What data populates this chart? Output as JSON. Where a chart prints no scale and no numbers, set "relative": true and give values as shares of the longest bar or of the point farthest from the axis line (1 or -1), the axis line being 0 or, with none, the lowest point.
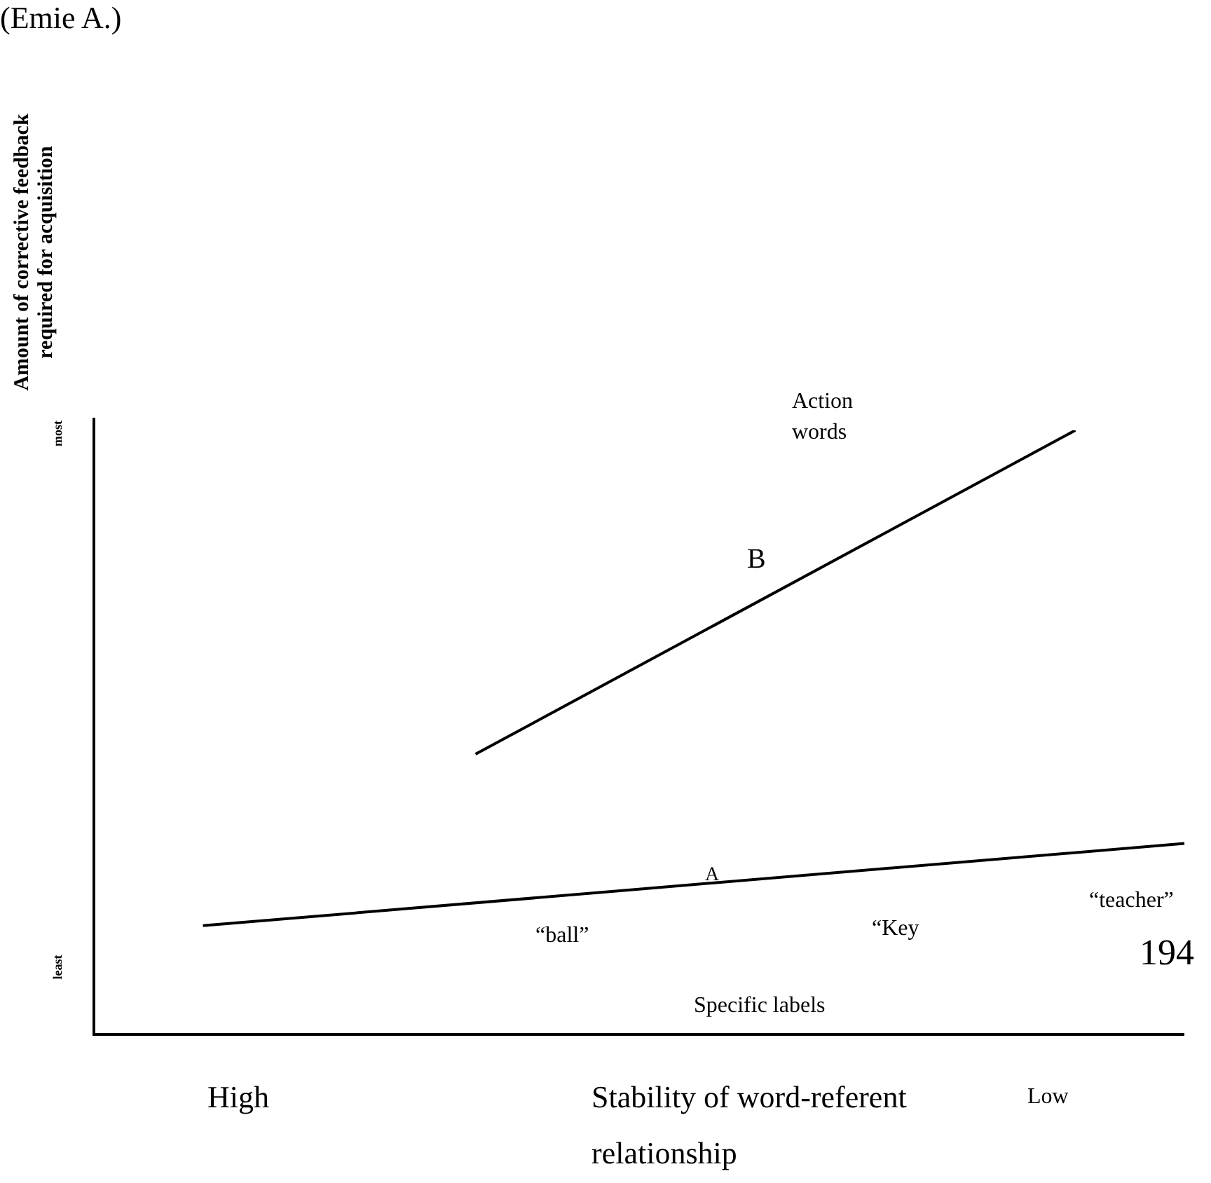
{
  "chart_data": {
    "type": "line",
    "relative": true,
    "xlabel": "Stability of word-referent relationship",
    "ylabel": "Amount of corrective feedback required for acquisition",
    "categories": [
      null,
      null,
      null,
      null,
      null,
      null,
      null,
      null,
      null,
      null,
      null,
      null,
      null,
      null,
      null,
      null,
      null,
      null,
      null,
      null,
      null
    ],
    "series": [
      {
        "color": "#000000",
        "values": [
          null,
          null,
          0.18,
          null,
          null,
          null,
          null,
          null,
          null,
          null,
          null,
          null,
          null,
          null,
          null,
          null,
          null,
          null,
          null,
          null,
          0.316
        ]
      },
      {
        "color": "#000000",
        "values": [
          null,
          null,
          null,
          null,
          null,
          null,
          null,
          0.464,
          null,
          null,
          null,
          null,
          null,
          null,
          null,
          null,
          null,
          null,
          1,
          null,
          null
        ]
      }
    ],
    "annotations": [
      "(Emie A.)",
      "most",
      "least",
      "Action",
      "words",
      "B",
      "A",
      "“ball”",
      "“Key",
      "“teacher”",
      "194",
      "Specific labels",
      "High",
      "Low"
    ],
    "legend": false,
    "marker": "none",
    "line_style": "solid"
  }
}
